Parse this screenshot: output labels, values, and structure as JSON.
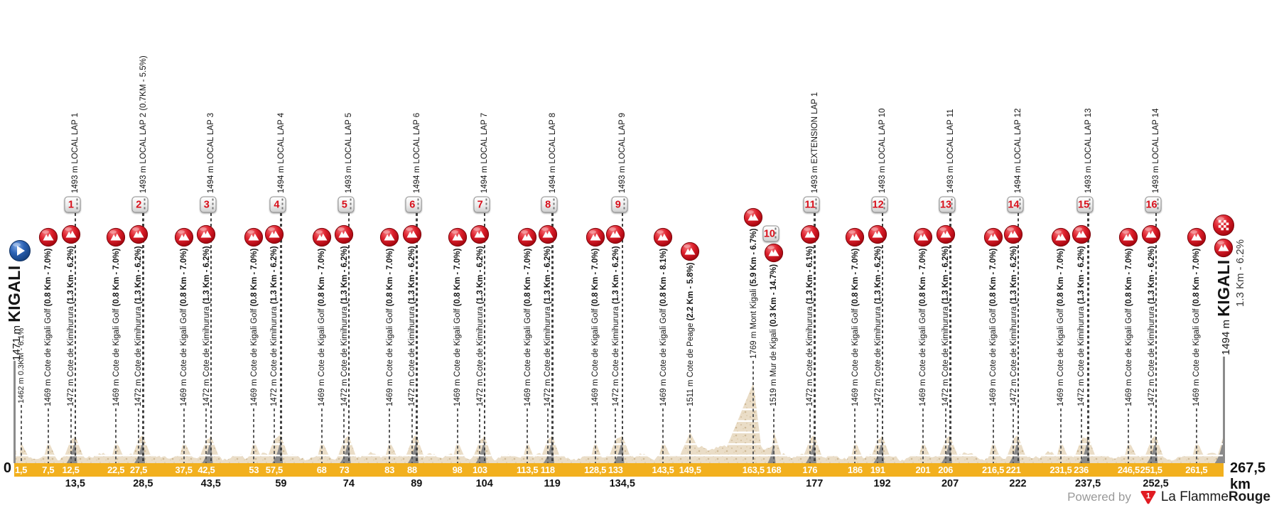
{
  "chart_data": {
    "type": "area",
    "title": "Kigali road race elevation profile",
    "x_unit": "km",
    "x_range": [
      0,
      267.5
    ],
    "grid": "horizontal-white-lines",
    "axis": {
      "start_label": "0",
      "end_label": "267,5 km"
    },
    "start": {
      "km": 0,
      "name": "KIGALI",
      "elevation_label": "1471 m"
    },
    "finish": {
      "km": 267.5,
      "name": "KIGALI",
      "elevation_label": "1494 m",
      "climb_stats": "1.3 Km - 6.2%"
    },
    "open_note": {
      "km": 1.5,
      "label": "1462 m 0.3KM - 6.1%"
    },
    "climbs": [
      {
        "km": 7.5,
        "name": "1469 m Cote de Kigali Golf",
        "stats": "(0.8 Km - 7.0%)"
      },
      {
        "km": 12.5,
        "name": "1472 m Cote de Kimihurura",
        "stats": "(1.3 Km - 6.2%)"
      },
      {
        "km": 22.5,
        "name": "1469 m Cote de Kigali Golf",
        "stats": "(0.8 Km - 7.0%)"
      },
      {
        "km": 27.5,
        "name": "1472 m Cote de Kimihurura",
        "stats": "(1.3 Km - 6.2%)"
      },
      {
        "km": 37.5,
        "name": "1469 m Cote de Kigali Golf",
        "stats": "(0.8 Km - 7.0%)"
      },
      {
        "km": 42.5,
        "name": "1472 m Cote de Kimihurura",
        "stats": "(1.3 Km - 6.2%)"
      },
      {
        "km": 53,
        "name": "1469 m Cote de Kigali Golf",
        "stats": "(0.8 Km - 7.0%)"
      },
      {
        "km": 57.5,
        "name": "1472 m Cote de Kimihurura",
        "stats": "(1.3 Km - 6.2%)"
      },
      {
        "km": 68,
        "name": "1469 m Cote de Kigali Golf",
        "stats": "(0.8 Km - 7.0%)"
      },
      {
        "km": 73,
        "name": "1472 m Cote de Kimihurura",
        "stats": "(1.3 Km - 6.2%)"
      },
      {
        "km": 83,
        "name": "1469 m Cote de Kigali Golf",
        "stats": "(0.8 Km - 7.0%)"
      },
      {
        "km": 88,
        "name": "1472 m Cote de Kimihurura",
        "stats": "(1.3 Km - 6.2%)"
      },
      {
        "km": 98,
        "name": "1469 m Cote de Kigali Golf",
        "stats": "(0.8 Km - 7.0%)"
      },
      {
        "km": 103,
        "name": "1472 m Cote de Kimihurura",
        "stats": "(1.3 Km - 6.2%)"
      },
      {
        "km": 113.5,
        "name": "1469 m Cote de Kigali Golf",
        "stats": "(0.8 Km - 7.0%)"
      },
      {
        "km": 118,
        "name": "1472 m Cote de Kimihurura",
        "stats": "(1.3 Km - 6.2%)"
      },
      {
        "km": 128.5,
        "name": "1469 m Cote de Kigali Golf",
        "stats": "(0.8 Km - 7.0%)"
      },
      {
        "km": 133,
        "name": "1472 m Cote de Kimihurura",
        "stats": "(1.3 Km - 6.2%)"
      },
      {
        "km": 143.5,
        "name": "1469 m Cote de Kigali Golf",
        "stats": "(0.8 Km - 8.1%)"
      },
      {
        "km": 149.5,
        "name": "1511 m Cote de Peage",
        "stats": "(2.2 Km - 5.8%)"
      },
      {
        "km": 163.5,
        "name": "1769 m Mont Kigali",
        "stats": "(5.9 Km - 6.7%)",
        "high": true
      },
      {
        "km": 168,
        "name": "1519 m Mur de Kigali",
        "stats": "(0.3 Km - 14.7%)"
      },
      {
        "km": 176,
        "name": "1472 m Cote de Kimihurura",
        "stats": "(1.3 Km - 6.1%)"
      },
      {
        "km": 186,
        "name": "1469 m Cote de Kigali Golf",
        "stats": "(0.8 Km - 7.0%)"
      },
      {
        "km": 191,
        "name": "1472 m Cote de Kimihurura",
        "stats": "(1.3 Km - 6.2%)"
      },
      {
        "km": 201,
        "name": "1469 m Cote de Kigali Golf",
        "stats": "(0.8 Km - 7.0%)"
      },
      {
        "km": 206,
        "name": "1472 m Cote de Kimihurura",
        "stats": "(1.3 Km - 6.2%)"
      },
      {
        "km": 216.5,
        "name": "1469 m Cote de Kigali Golf",
        "stats": "(0.8 Km - 7.0%)"
      },
      {
        "km": 221,
        "name": "1472 m Cote de Kimihurura",
        "stats": "(1.3 Km - 6.2%)"
      },
      {
        "km": 231.5,
        "name": "1469 m Cote de Kigali Golf",
        "stats": "(0.8 Km - 7.0%)"
      },
      {
        "km": 236,
        "name": "1472 m Cote de Kimihurura",
        "stats": "(1.3 Km - 6.2%)"
      },
      {
        "km": 246.5,
        "name": "1469 m Cote de Kigali Golf",
        "stats": "(0.8 Km - 7.0%)"
      },
      {
        "km": 251.5,
        "name": "1472 m Cote de Kimihurura",
        "stats": "(1.3 Km - 6.2%)"
      },
      {
        "km": 261.5,
        "name": "1469 m Cote de Kigali Golf",
        "stats": "(0.8 Km - 7.0%)"
      }
    ],
    "laps": [
      {
        "km": 13.5,
        "number": "1",
        "label": "1493 m LOCAL LAP 1"
      },
      {
        "km": 28.5,
        "number": "2",
        "label": "1493 m LOCAL LAP 2 (0.7KM - 5.5%)"
      },
      {
        "km": 43.5,
        "number": "3",
        "label": "1494 m LOCAL LAP 3"
      },
      {
        "km": 59,
        "number": "4",
        "label": "1494 m LOCAL LAP 4"
      },
      {
        "km": 74,
        "number": "5",
        "label": "1493 m LOCAL LAP 5"
      },
      {
        "km": 89,
        "number": "6",
        "label": "1494 m LOCAL LAP 6"
      },
      {
        "km": 104,
        "number": "7",
        "label": "1494 m LOCAL LAP 7"
      },
      {
        "km": 119,
        "number": "8",
        "label": "1494 m LOCAL LAP 8"
      },
      {
        "km": 134.5,
        "number": "9",
        "label": "1493 m LOCAL LAP 9"
      },
      {
        "km": 168,
        "number": "10",
        "label": "",
        "on_climb": true
      },
      {
        "km": 177,
        "number": "11",
        "label": "1493 m EXTENSION LAP 1"
      },
      {
        "km": 192,
        "number": "12",
        "label": "1493 m LOCAL LAP 10"
      },
      {
        "km": 207,
        "number": "13",
        "label": "1493 m LOCAL LAP 11"
      },
      {
        "km": 222,
        "number": "14",
        "label": "1494 m LOCAL LAP 12"
      },
      {
        "km": 237.5,
        "number": "15",
        "label": "1493 m LOCAL LAP 13"
      },
      {
        "km": 252.5,
        "number": "16",
        "label": "1493 m LOCAL LAP 14"
      }
    ]
  },
  "colors": {
    "accent_red": "#D8101B",
    "bar_yellow": "#F2B01E",
    "terrain_beige": "#EADDC7",
    "start_blue": "#2B62B4",
    "lap_wedge_gray": "#8A8A8A"
  },
  "footer": {
    "powered_by": "Powered by",
    "logo_glyph": "1",
    "brand_regular": "La Flamme",
    "brand_bold": "Rouge"
  }
}
